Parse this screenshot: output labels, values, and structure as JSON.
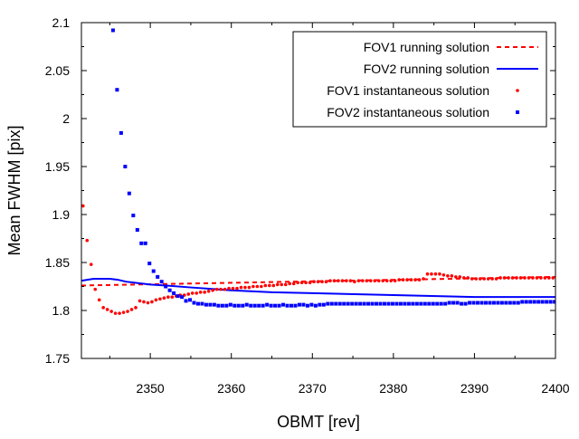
{
  "chart_data": {
    "type": "line",
    "title": "",
    "xlabel": "OBMT [rev]",
    "ylabel": "Mean FWHM [pix]",
    "xlim": [
      2341.5,
      2400
    ],
    "ylim": [
      1.75,
      2.1
    ],
    "grid": false,
    "legend_position": "top-right",
    "x_ticks": [
      2350,
      2360,
      2370,
      2380,
      2390,
      2400
    ],
    "x_tick_labels": [
      "2350",
      "2360",
      "2370",
      "2380",
      "2390",
      "2400"
    ],
    "y_ticks": [
      1.75,
      1.8,
      1.85,
      1.9,
      1.95,
      2.0,
      2.05,
      2.1
    ],
    "y_tick_labels": [
      "1.75",
      "1.8",
      "1.85",
      "1.9",
      "1.95",
      "2",
      "2.05",
      "2.1"
    ],
    "series": [
      {
        "name": "FOV1 running solution",
        "kind": "line",
        "style": "dashed",
        "color": "#ff0000",
        "x": [
          2341.5,
          2400
        ],
        "y": [
          1.826,
          1.835
        ]
      },
      {
        "name": "FOV2 running solution",
        "kind": "line",
        "style": "solid",
        "color": "#0000ff",
        "x": [
          2341.5,
          2343,
          2344,
          2345,
          2346,
          2347,
          2348,
          2350,
          2352,
          2355,
          2360,
          2365,
          2370,
          2380,
          2390,
          2400
        ],
        "y": [
          1.831,
          1.833,
          1.833,
          1.833,
          1.832,
          1.83,
          1.829,
          1.827,
          1.826,
          1.824,
          1.821,
          1.819,
          1.818,
          1.816,
          1.814,
          1.814
        ]
      },
      {
        "name": "FOV1 instantaneous solution",
        "kind": "points",
        "marker": "dot",
        "color": "#ff0000",
        "x": [
          2341.7,
          2342.2,
          2342.7,
          2343.2,
          2343.7,
          2344.2,
          2344.7,
          2345.2,
          2345.7,
          2346.2,
          2346.7,
          2347.2,
          2347.7,
          2348.2,
          2348.7,
          2349.2,
          2349.7,
          2350.2,
          2350.7,
          2351.2,
          2351.7,
          2352.2,
          2352.7,
          2353.2,
          2353.7,
          2354.2,
          2354.7,
          2355.2,
          2355.7,
          2356.2,
          2356.7,
          2357.2,
          2357.7,
          2358.2,
          2358.7,
          2359.2,
          2359.7,
          2360.2,
          2360.7,
          2361.2,
          2361.7,
          2362.2,
          2362.7,
          2363.2,
          2363.7,
          2364.2,
          2364.7,
          2365.2,
          2365.7,
          2366.2,
          2366.7,
          2367.2,
          2367.7,
          2368.2,
          2368.7,
          2369.2,
          2369.7,
          2370.2,
          2370.7,
          2371.2,
          2371.7,
          2372.2,
          2372.7,
          2373.2,
          2373.7,
          2374.2,
          2374.7,
          2375.2,
          2375.7,
          2376.2,
          2376.7,
          2377.2,
          2377.7,
          2378.2,
          2378.7,
          2379.2,
          2379.7,
          2380.2,
          2380.7,
          2381.2,
          2381.7,
          2382.2,
          2382.7,
          2383.2,
          2383.7,
          2384.2,
          2384.7,
          2385.2,
          2385.7,
          2386.2,
          2386.7,
          2387.2,
          2387.7,
          2388.2,
          2388.7,
          2389.2,
          2389.7,
          2390.2,
          2390.7,
          2391.2,
          2391.7,
          2392.2,
          2392.7,
          2393.2,
          2393.7,
          2394.2,
          2394.7,
          2395.2,
          2395.7,
          2396.2,
          2396.7,
          2397.2,
          2397.7,
          2398.2,
          2398.7,
          2399.2,
          2399.7
        ],
        "y": [
          1.909,
          1.873,
          1.848,
          1.822,
          1.811,
          1.803,
          1.801,
          1.799,
          1.797,
          1.797,
          1.798,
          1.799,
          1.801,
          1.803,
          1.81,
          1.809,
          1.808,
          1.809,
          1.811,
          1.812,
          1.813,
          1.814,
          1.814,
          1.815,
          1.816,
          1.816,
          1.817,
          1.818,
          1.818,
          1.819,
          1.819,
          1.82,
          1.821,
          1.822,
          1.822,
          1.822,
          1.823,
          1.823,
          1.823,
          1.824,
          1.824,
          1.824,
          1.825,
          1.825,
          1.825,
          1.826,
          1.826,
          1.826,
          1.827,
          1.827,
          1.827,
          1.828,
          1.828,
          1.829,
          1.829,
          1.829,
          1.829,
          1.83,
          1.83,
          1.83,
          1.83,
          1.831,
          1.831,
          1.831,
          1.831,
          1.831,
          1.831,
          1.83,
          1.831,
          1.831,
          1.831,
          1.831,
          1.831,
          1.831,
          1.831,
          1.831,
          1.831,
          1.831,
          1.832,
          1.832,
          1.832,
          1.832,
          1.832,
          1.832,
          1.833,
          1.838,
          1.838,
          1.838,
          1.838,
          1.837,
          1.836,
          1.836,
          1.835,
          1.835,
          1.834,
          1.834,
          1.833,
          1.833,
          1.833,
          1.833,
          1.833,
          1.833,
          1.833,
          1.834,
          1.834,
          1.834,
          1.834,
          1.834,
          1.834,
          1.834,
          1.834,
          1.834,
          1.834,
          1.834,
          1.834,
          1.834,
          1.834
        ]
      },
      {
        "name": "FOV2 instantaneous solution",
        "kind": "points",
        "marker": "square",
        "color": "#0000ff",
        "x": [
          2345.4,
          2345.9,
          2346.4,
          2346.9,
          2347.4,
          2347.9,
          2348.4,
          2348.9,
          2349.4,
          2349.9,
          2350.4,
          2350.9,
          2351.4,
          2351.9,
          2352.4,
          2352.9,
          2353.4,
          2353.9,
          2354.4,
          2354.9,
          2355.4,
          2355.9,
          2356.4,
          2356.9,
          2357.4,
          2357.9,
          2358.4,
          2358.9,
          2359.4,
          2359.9,
          2360.4,
          2360.9,
          2361.4,
          2361.9,
          2362.4,
          2362.9,
          2363.4,
          2363.9,
          2364.4,
          2364.9,
          2365.4,
          2365.9,
          2366.4,
          2366.9,
          2367.4,
          2367.9,
          2368.4,
          2368.9,
          2369.4,
          2369.9,
          2370.4,
          2370.9,
          2371.4,
          2371.9,
          2372.4,
          2372.9,
          2373.4,
          2373.9,
          2374.4,
          2374.9,
          2375.4,
          2375.9,
          2376.4,
          2376.9,
          2377.4,
          2377.9,
          2378.4,
          2378.9,
          2379.4,
          2379.9,
          2380.4,
          2380.9,
          2381.4,
          2381.9,
          2382.4,
          2382.9,
          2383.4,
          2383.9,
          2384.4,
          2384.9,
          2385.4,
          2385.9,
          2386.4,
          2386.9,
          2387.4,
          2387.9,
          2388.4,
          2388.9,
          2389.4,
          2389.9,
          2390.4,
          2390.9,
          2391.4,
          2391.9,
          2392.4,
          2392.9,
          2393.4,
          2393.9,
          2394.4,
          2394.9,
          2395.4,
          2395.9,
          2396.4,
          2396.9,
          2397.4,
          2397.9,
          2398.4,
          2398.9,
          2399.4,
          2399.9
        ],
        "y": [
          2.092,
          2.03,
          1.985,
          1.95,
          1.922,
          1.899,
          1.884,
          1.87,
          1.87,
          1.849,
          1.841,
          1.835,
          1.83,
          1.825,
          1.821,
          1.818,
          1.815,
          1.814,
          1.81,
          1.811,
          1.808,
          1.807,
          1.807,
          1.806,
          1.806,
          1.806,
          1.805,
          1.805,
          1.805,
          1.806,
          1.805,
          1.805,
          1.805,
          1.806,
          1.805,
          1.805,
          1.805,
          1.805,
          1.806,
          1.805,
          1.805,
          1.805,
          1.806,
          1.805,
          1.805,
          1.805,
          1.806,
          1.806,
          1.805,
          1.806,
          1.805,
          1.806,
          1.806,
          1.807,
          1.807,
          1.807,
          1.807,
          1.807,
          1.807,
          1.807,
          1.807,
          1.807,
          1.807,
          1.807,
          1.807,
          1.807,
          1.807,
          1.807,
          1.807,
          1.807,
          1.807,
          1.807,
          1.807,
          1.807,
          1.807,
          1.807,
          1.807,
          1.807,
          1.807,
          1.807,
          1.807,
          1.807,
          1.807,
          1.808,
          1.808,
          1.808,
          1.807,
          1.807,
          1.808,
          1.808,
          1.808,
          1.808,
          1.808,
          1.808,
          1.808,
          1.808,
          1.808,
          1.808,
          1.808,
          1.808,
          1.808,
          1.809,
          1.809,
          1.809,
          1.809,
          1.809,
          1.809,
          1.809,
          1.809,
          1.809
        ]
      }
    ]
  }
}
